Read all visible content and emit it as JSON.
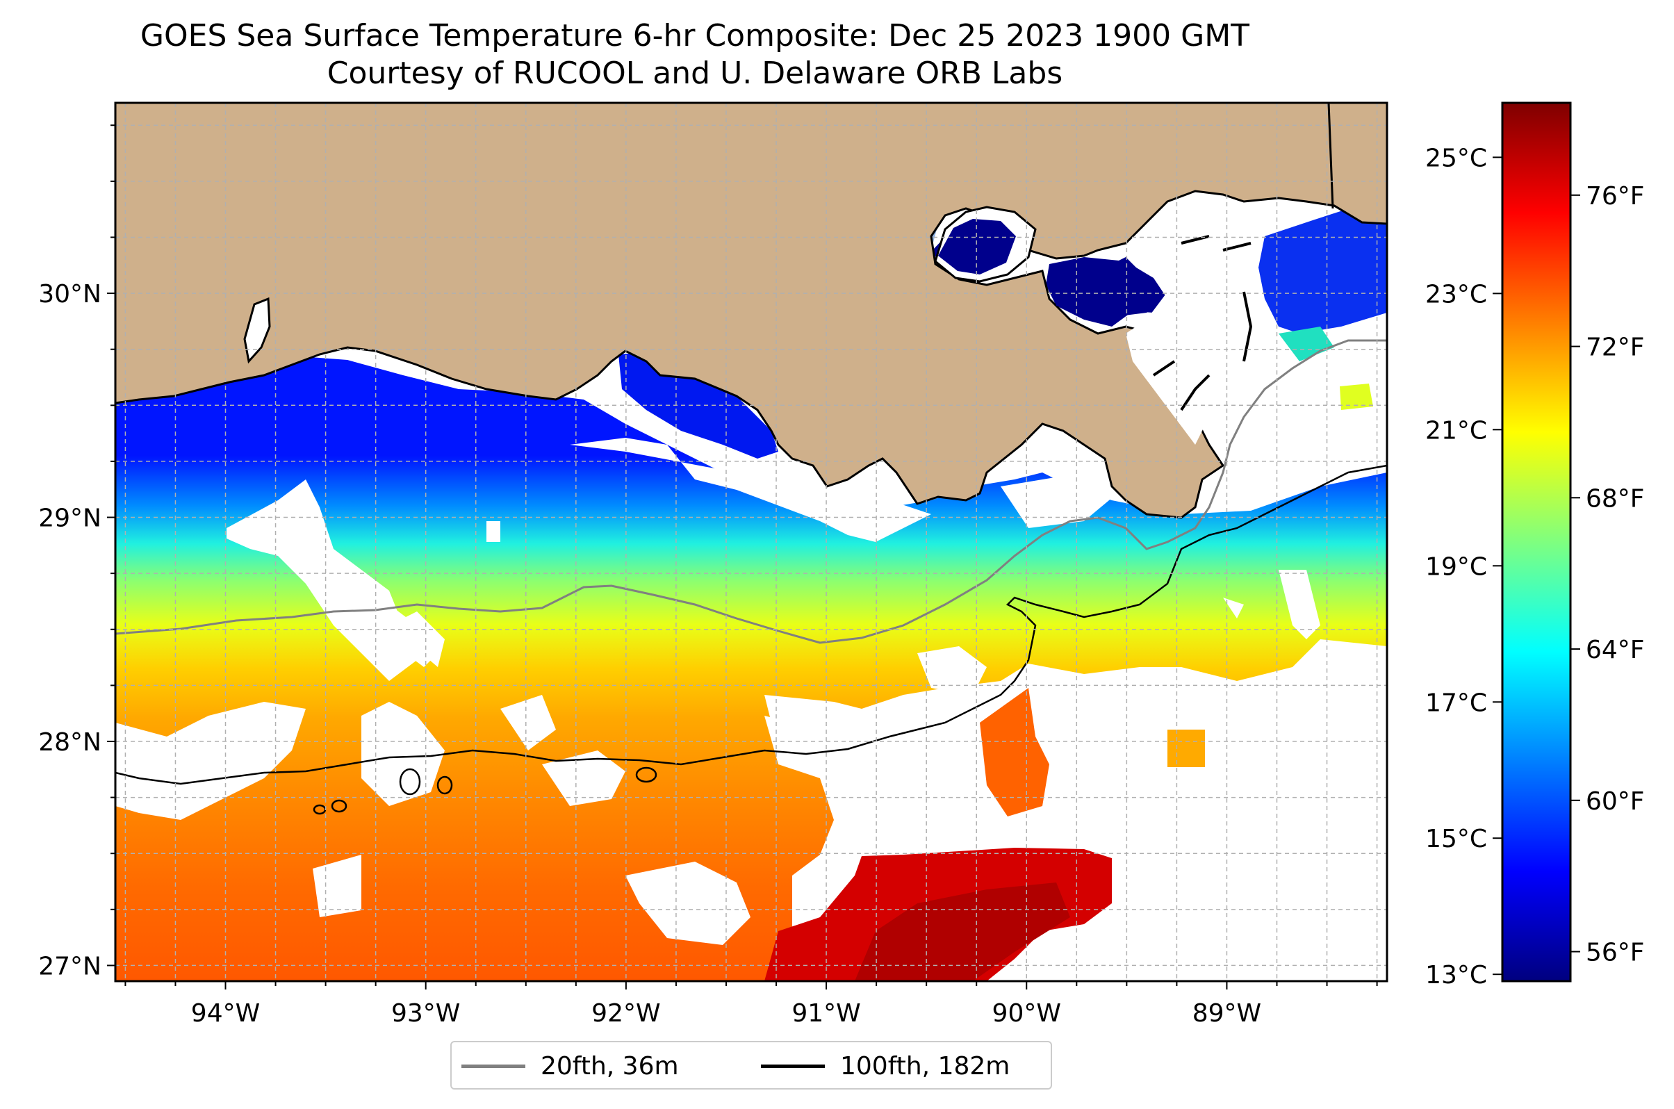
{
  "title": {
    "line1": "GOES Sea Surface Temperature 6-hr Composite: Dec 25 2023 1900 GMT",
    "line2": "Courtesy of RUCOOL and U. Delaware ORB Labs"
  },
  "map": {
    "lon_range": [
      -94.55,
      -88.2
    ],
    "lat_range": [
      26.93,
      30.85
    ],
    "x_ticks": [
      {
        "lon": -94,
        "label": "94°W"
      },
      {
        "lon": -93,
        "label": "93°W"
      },
      {
        "lon": -92,
        "label": "92°W"
      },
      {
        "lon": -91,
        "label": "91°W"
      },
      {
        "lon": -90,
        "label": "90°W"
      },
      {
        "lon": -89,
        "label": "89°W"
      }
    ],
    "y_ticks": [
      {
        "lat": 30,
        "label": "30°N"
      },
      {
        "lat": 29,
        "label": "29°N"
      },
      {
        "lat": 28,
        "label": "28°N"
      },
      {
        "lat": 27,
        "label": "27°N"
      }
    ],
    "gridlines": "dashed",
    "land_color": "#cfb08b",
    "no_data_color": "#ffffff"
  },
  "colorbar": {
    "celsius_range": [
      12.9,
      25.8
    ],
    "celsius_ticks": [
      {
        "value": 25,
        "label": "25°C"
      },
      {
        "value": 23,
        "label": "23°C"
      },
      {
        "value": 21,
        "label": "21°C"
      },
      {
        "value": 19,
        "label": "19°C"
      },
      {
        "value": 17,
        "label": "17°C"
      },
      {
        "value": 15,
        "label": "15°C"
      },
      {
        "value": 13,
        "label": "13°C"
      }
    ],
    "fahrenheit_ticks": [
      {
        "value": 76,
        "label": "76°F"
      },
      {
        "value": 72,
        "label": "72°F"
      },
      {
        "value": 68,
        "label": "68°F"
      },
      {
        "value": 64,
        "label": "64°F"
      },
      {
        "value": 60,
        "label": "60°F"
      },
      {
        "value": 56,
        "label": "56°F"
      }
    ],
    "colormap": [
      "#00007f",
      "#0000ff",
      "#007fff",
      "#00ffff",
      "#7fff7f",
      "#ffff00",
      "#ff7f00",
      "#ff0000",
      "#7f0000"
    ]
  },
  "legend": {
    "position": "bottom-center",
    "items": [
      {
        "label": "20fth, 36m",
        "color": "#808080"
      },
      {
        "label": "100fth, 182m",
        "color": "#000000"
      }
    ]
  }
}
